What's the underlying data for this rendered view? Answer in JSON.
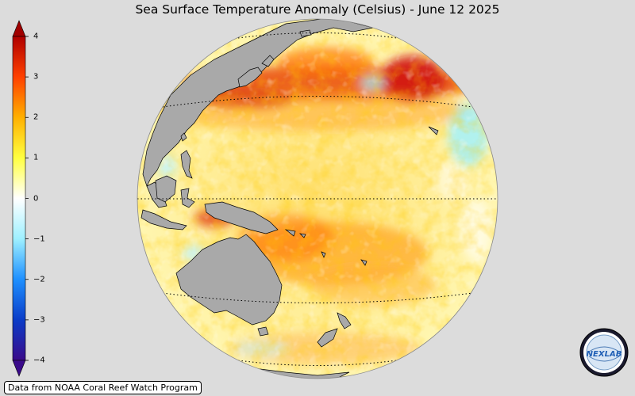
{
  "title": "Sea Surface Temperature Anomaly (Celsius) - June 12 2025",
  "credit": "Data from NOAA Coral Reef Watch Program",
  "colorbar": {
    "min": -4,
    "max": 4,
    "ticks": [
      "4",
      "3",
      "2",
      "1",
      "0",
      "−1",
      "−2",
      "−3",
      "−4"
    ],
    "stops": [
      "#3a0a8a",
      "#0a3cc8",
      "#1e90ff",
      "#9ef0ff",
      "#ffffff",
      "#ffff40",
      "#ffb000",
      "#ff4000",
      "#b00000"
    ]
  },
  "colors": {
    "background": "#dcdcdc",
    "land": "#a9a9a9",
    "warm_anomaly": "#ff8c00",
    "strong_warm_anomaly": "#cc0000",
    "cool_anomaly": "#7fe8ff"
  },
  "logo": {
    "name": "nexlab-logo",
    "text": "NEXLAB"
  }
}
